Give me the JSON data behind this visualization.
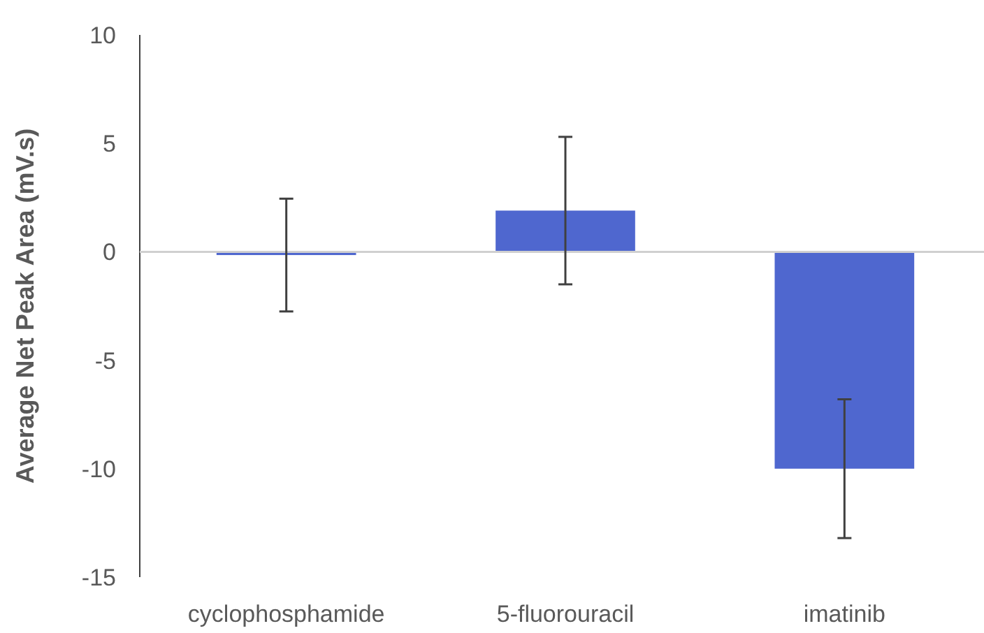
{
  "chart_data": {
    "type": "bar",
    "ylabel": "Average Net Peak Area (mV.s)",
    "categories": [
      "cyclophosphamide",
      "5-fluorouracil",
      "imatinib"
    ],
    "values": [
      -0.15,
      1.9,
      -10
    ],
    "errors": [
      2.6,
      3.4,
      3.2
    ],
    "color": "#4f67cf",
    "ylim": [
      -15,
      10
    ],
    "yticks": [
      -15,
      -10,
      -5,
      0,
      5,
      10
    ]
  }
}
